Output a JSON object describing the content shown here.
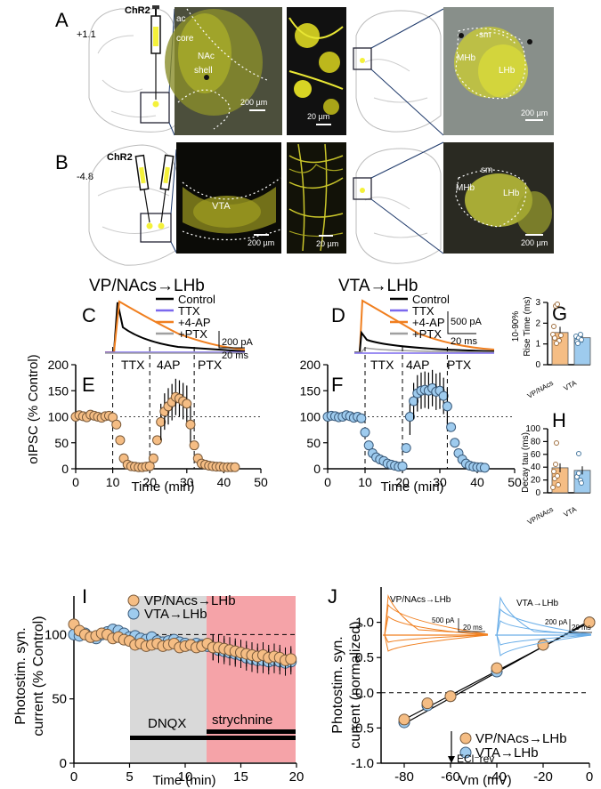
{
  "panels": {
    "A": {
      "letter": "A",
      "coord": "+1.1",
      "virus": "ChR2",
      "labels": [
        "ac",
        "core",
        "NAc",
        "shell",
        "sm",
        "MHb",
        "LHb"
      ],
      "scale": [
        "200 µm",
        "20 µm",
        "200 µm"
      ]
    },
    "B": {
      "letter": "B",
      "coord": "-4.8",
      "virus": "ChR2",
      "labels": [
        "VTA",
        "sm",
        "MHb",
        "LHb"
      ],
      "scale": [
        "200 µm",
        "20 µm",
        "200 µm"
      ]
    }
  },
  "titles": {
    "left": "VP/NAcs→LHb",
    "right": "VTA→LHb"
  },
  "traces": {
    "C": {
      "letter": "C",
      "legend": [
        "Control",
        "TTX",
        "+4-AP",
        "+PTX"
      ],
      "scale_y": "200 pA",
      "scale_x": "20 ms"
    },
    "D": {
      "letter": "D",
      "legend": [
        "Control",
        "TTX",
        "+4-AP",
        "+PTX"
      ],
      "scale_y": "500 pA",
      "scale_x": "20 ms"
    }
  },
  "colors": {
    "control": "#000000",
    "ttx": "#7b68ee",
    "ap4": "#f07f1f",
    "ptx": "#a0a0a0",
    "orange_marker": "#f5bd84",
    "blue_marker": "#9ecbee",
    "dnqx_shade": "#d9d9d9",
    "strych_shade": "#f5a3a8"
  },
  "timecourse": {
    "ylabel": "oIPSC (% Control)",
    "xlabel": "Time (min)",
    "xticks": [
      "0",
      "10",
      "20",
      "30",
      "40",
      "50"
    ],
    "yticks": [
      "0",
      "50",
      "100",
      "150",
      "200"
    ],
    "E": {
      "letter": "E",
      "phases": [
        "TTX",
        "4AP",
        "PTX"
      ]
    },
    "F": {
      "letter": "F",
      "phases": [
        "TTX",
        "4AP",
        "PTX"
      ]
    }
  },
  "chart_data": [
    {
      "type": "scatter",
      "panel": "E",
      "xlabel": "Time (min)",
      "ylabel": "oIPSC (% Control)",
      "xlim": [
        0,
        50
      ],
      "ylim": [
        0,
        200
      ],
      "x": [
        0,
        1,
        2,
        3,
        4,
        5,
        6,
        7,
        8,
        9,
        10,
        11,
        12,
        13,
        14,
        15,
        16,
        17,
        18,
        19,
        20,
        21,
        22,
        23,
        24,
        25,
        26,
        27,
        28,
        29,
        30,
        31,
        32,
        33,
        34,
        35,
        36,
        37,
        38,
        39,
        40,
        41,
        42,
        43
      ],
      "values": [
        100,
        103,
        101,
        99,
        104,
        102,
        100,
        98,
        101,
        102,
        99,
        85,
        55,
        20,
        8,
        5,
        4,
        3,
        3,
        4,
        5,
        20,
        55,
        90,
        110,
        120,
        128,
        138,
        135,
        130,
        125,
        85,
        45,
        20,
        10,
        8,
        6,
        5,
        4,
        4,
        3,
        3,
        3,
        3
      ]
    },
    {
      "type": "scatter",
      "panel": "F",
      "xlabel": "Time (min)",
      "ylabel": "oIPSC (% Control)",
      "xlim": [
        0,
        50
      ],
      "ylim": [
        0,
        200
      ],
      "x": [
        0,
        1,
        2,
        3,
        4,
        5,
        6,
        7,
        8,
        9,
        10,
        11,
        12,
        13,
        14,
        15,
        16,
        17,
        18,
        19,
        20,
        21,
        22,
        23,
        24,
        25,
        26,
        27,
        28,
        29,
        30,
        31,
        32,
        33,
        34,
        35,
        36,
        37,
        38,
        39,
        40,
        41,
        42
      ],
      "values": [
        100,
        102,
        101,
        99,
        100,
        103,
        101,
        98,
        100,
        97,
        70,
        45,
        30,
        22,
        18,
        15,
        10,
        8,
        6,
        4,
        5,
        40,
        100,
        130,
        145,
        150,
        152,
        150,
        155,
        148,
        150,
        140,
        120,
        80,
        50,
        30,
        18,
        10,
        6,
        4,
        3,
        3,
        2
      ]
    },
    {
      "type": "bar",
      "panel": "G",
      "ylabel": "10-90% Rise Time (ms)",
      "categories": [
        "VP/NAcs",
        "VTA"
      ],
      "values": [
        1.55,
        1.3
      ],
      "ylim": [
        0,
        3
      ],
      "yticks": [
        "0",
        "1",
        "2",
        "3"
      ]
    },
    {
      "type": "bar",
      "panel": "H",
      "ylabel": "Decay tau (ms)",
      "categories": [
        "VP/NAcs",
        "VTA"
      ],
      "values": [
        39,
        35
      ],
      "ylim": [
        0,
        100
      ],
      "yticks": [
        "0",
        "20",
        "40",
        "60",
        "80",
        "100"
      ]
    },
    {
      "type": "scatter",
      "panel": "I",
      "xlabel": "Time (min)",
      "ylabel": "Photostim. syn. current (% Control)",
      "xlim": [
        0,
        20
      ],
      "ylim": [
        0,
        130
      ],
      "xticks": [
        "0",
        "5",
        "10",
        "15",
        "20"
      ],
      "yticks": [
        "0",
        "50",
        "100"
      ],
      "series": [
        {
          "name": "VP/NAcs→LHb",
          "x": [
            0,
            0.5,
            1,
            1.5,
            2,
            2.5,
            3,
            3.5,
            4,
            4.5,
            5,
            5.5,
            6,
            6.5,
            7,
            7.5,
            8,
            8.5,
            9,
            9.5,
            10,
            10.5,
            11,
            11.5,
            12,
            12.5,
            13,
            13.5,
            14,
            14.5,
            15,
            15.5,
            16,
            16.5,
            17,
            17.5,
            18,
            18.5,
            19,
            19.5
          ],
          "values": [
            108,
            103,
            100,
            98,
            99,
            101,
            100,
            97,
            98,
            96,
            95,
            92,
            93,
            91,
            92,
            93,
            91,
            92,
            93,
            90,
            91,
            92,
            90,
            91,
            93,
            90,
            90,
            89,
            88,
            87,
            86,
            85,
            84,
            83,
            84,
            82,
            83,
            82,
            80,
            81
          ]
        },
        {
          "name": "VTA→LHb",
          "x": [
            0,
            0.5,
            1,
            1.5,
            2,
            2.5,
            3,
            3.5,
            4,
            4.5,
            5,
            5.5,
            6,
            6.5,
            7,
            7.5,
            8,
            8.5,
            9,
            9.5,
            10,
            10.5,
            11,
            11.5,
            12,
            12.5,
            13,
            13.5,
            14,
            14.5,
            15,
            15.5,
            16,
            16.5,
            17,
            17.5,
            18,
            18.5,
            19,
            19.5
          ],
          "values": [
            100,
            99,
            101,
            98,
            97,
            100,
            102,
            104,
            103,
            101,
            98,
            99,
            97,
            96,
            98,
            95,
            94,
            95,
            96,
            94,
            93,
            92,
            93,
            92,
            91,
            90,
            88,
            87,
            86,
            85,
            84,
            82,
            81,
            80,
            80,
            79,
            80,
            79,
            78,
            79
          ]
        }
      ],
      "annotations": [
        "DNQX",
        "strychnine"
      ]
    },
    {
      "type": "scatter",
      "panel": "J",
      "xlabel": "Vm (mV)",
      "ylabel": "Photostim. syn. current (normalized)",
      "xlim": [
        -90,
        0
      ],
      "ylim": [
        -1,
        1.5
      ],
      "xticks": [
        "-80",
        "-60",
        "-40",
        "-20",
        "0"
      ],
      "yticks": [
        "-1.0",
        "-0.5",
        "0.0",
        "0.5",
        "1.0"
      ],
      "series": [
        {
          "name": "VP/NAcs→LHb",
          "x": [
            -80,
            -70,
            -60,
            -40,
            -20,
            0
          ],
          "values": [
            -0.38,
            -0.15,
            -0.05,
            0.35,
            0.68,
            1.0
          ]
        },
        {
          "name": "VTA→LHb",
          "x": [
            -80,
            -70,
            -60,
            -40,
            -20,
            0
          ],
          "values": [
            -0.42,
            -0.18,
            -0.05,
            0.3,
            0.68,
            1.0
          ]
        }
      ],
      "annotation": "ECl⁻rev"
    }
  ],
  "panelI": {
    "letter": "I",
    "ylabel1": "Photostim. syn.",
    "ylabel2": "current (% Control)",
    "xlabel": "Time (min)",
    "legend": [
      "VP/NAcs→LHb",
      "VTA→LHb"
    ],
    "dnqx": "DNQX",
    "strych": "strychnine",
    "xticks": [
      "0",
      "5",
      "10",
      "15",
      "20"
    ],
    "yticks": [
      "0",
      "50",
      "100"
    ]
  },
  "panelJ": {
    "letter": "J",
    "ylabel1": "Photostim. syn.",
    "ylabel2": "current (normalized)",
    "xlabel": "Vm (mV)",
    "legend": [
      "VP/NAcs→LHb",
      "VTA→LHb"
    ],
    "ecl": "ECl⁻rev",
    "inset_left": {
      "label": "VP/NAcs→LHb",
      "sy": "500 pA",
      "sx": "20 ms"
    },
    "inset_right": {
      "label": "VTA→LHb",
      "sy": "200 pA",
      "sx": "20 ms"
    },
    "xticks": [
      "-80",
      "-60",
      "-40",
      "-20",
      "0"
    ],
    "yticks": [
      "-1.0",
      "-0.5",
      "0.0",
      "0.5",
      "1.0"
    ]
  },
  "panelG": {
    "letter": "G",
    "ylabel1": "10-90%",
    "ylabel2": "Rise Time (ms)",
    "cats": [
      "VP/NAcs",
      "VTA"
    ],
    "yticks": [
      "0",
      "1",
      "2",
      "3"
    ]
  },
  "panelH": {
    "letter": "H",
    "ylabel": "Decay tau (ms)",
    "cats": [
      "VP/NAcs",
      "VTA"
    ],
    "yticks": [
      "0",
      "20",
      "40",
      "60",
      "80",
      "100"
    ]
  }
}
